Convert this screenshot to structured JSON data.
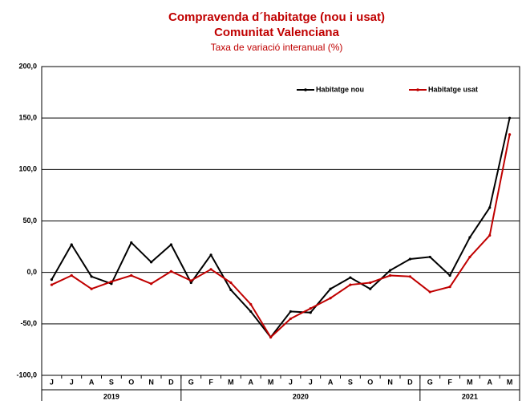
{
  "chart_data": {
    "type": "line",
    "title": "Compravenda d´habitatge (nou i usat)",
    "subtitle_line": "Comunitat Valenciana",
    "subtitle": "Taxa de variació interanual (%)",
    "categories": [
      "J",
      "J",
      "A",
      "S",
      "O",
      "N",
      "D",
      "G",
      "F",
      "M",
      "A",
      "M",
      "J",
      "J",
      "A",
      "S",
      "O",
      "N",
      "D",
      "G",
      "F",
      "M",
      "A",
      "M"
    ],
    "years": [
      {
        "label": "2019",
        "span": 7
      },
      {
        "label": "2020",
        "span": 12
      },
      {
        "label": "2021",
        "span": 5
      }
    ],
    "series": [
      {
        "name": "Habitatge nou",
        "color": "#000000",
        "values": [
          -7,
          27,
          -4,
          -11,
          29,
          10,
          27,
          -10,
          17,
          -17,
          -38,
          -63,
          -38,
          -39,
          -16,
          -5,
          -16,
          2,
          13,
          15,
          -3,
          34,
          63,
          150
        ]
      },
      {
        "name": "Habitatge usat",
        "color": "#c00000",
        "values": [
          -12,
          -3,
          -16,
          -9,
          -3,
          -11,
          1,
          -8,
          3,
          -10,
          -31,
          -63,
          -45,
          -35,
          -25,
          -12,
          -10,
          -3,
          -4,
          -19,
          -14,
          15,
          36,
          134
        ]
      }
    ],
    "ylim": [
      -100,
      200
    ],
    "yticks": [
      {
        "value": -100,
        "label": "-100,0"
      },
      {
        "value": -50,
        "label": "-50,0"
      },
      {
        "value": 0,
        "label": "0,0"
      },
      {
        "value": 50,
        "label": "50,0"
      },
      {
        "value": 100,
        "label": "100,0"
      },
      {
        "value": 150,
        "label": "150,0"
      },
      {
        "value": 200,
        "label": "200,0"
      }
    ],
    "grid": true,
    "legend": "top"
  }
}
